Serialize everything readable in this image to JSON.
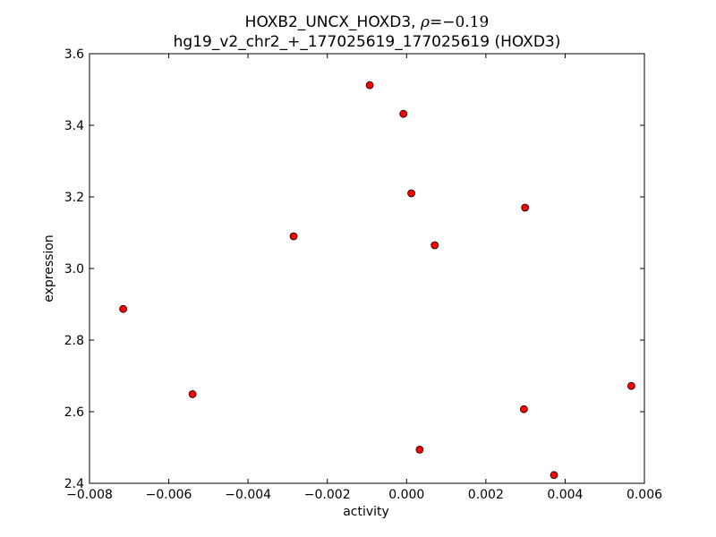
{
  "chart_data": {
    "type": "scatter",
    "title": {
      "line1_prefix": "HOXB2_UNCX_HOXD3, ",
      "rho_symbol": "ρ",
      "rho_value": "=−0.19",
      "line2": "hg19_v2_chr2_+_177025619_177025619 (HOXD3)"
    },
    "xlabel": "activity",
    "ylabel": "expression",
    "xlim": [
      -0.008,
      0.006
    ],
    "ylim": [
      2.4,
      3.6
    ],
    "xticks": [
      -0.008,
      -0.006,
      -0.004,
      -0.002,
      0.0,
      0.002,
      0.004,
      0.006
    ],
    "xtick_labels": [
      "−0.008",
      "−0.006",
      "−0.004",
      "−0.002",
      "0.000",
      "0.002",
      "0.004",
      "0.006"
    ],
    "yticks": [
      2.4,
      2.6,
      2.8,
      3.0,
      3.2,
      3.4,
      3.6
    ],
    "ytick_labels": [
      "2.4",
      "2.6",
      "2.8",
      "3.0",
      "3.2",
      "3.4",
      "3.6"
    ],
    "marker_color": "#ff0000",
    "grid": false,
    "points": [
      {
        "x": -0.00715,
        "y": 2.887
      },
      {
        "x": -0.0054,
        "y": 2.649
      },
      {
        "x": -0.00285,
        "y": 3.09
      },
      {
        "x": -0.00093,
        "y": 3.512
      },
      {
        "x": -8e-05,
        "y": 3.432
      },
      {
        "x": 0.00012,
        "y": 3.21
      },
      {
        "x": 0.00033,
        "y": 2.494
      },
      {
        "x": 0.00071,
        "y": 3.065
      },
      {
        "x": 0.00296,
        "y": 2.607
      },
      {
        "x": 0.00299,
        "y": 3.17
      },
      {
        "x": 0.00372,
        "y": 2.423
      },
      {
        "x": 0.00567,
        "y": 2.672
      }
    ]
  }
}
